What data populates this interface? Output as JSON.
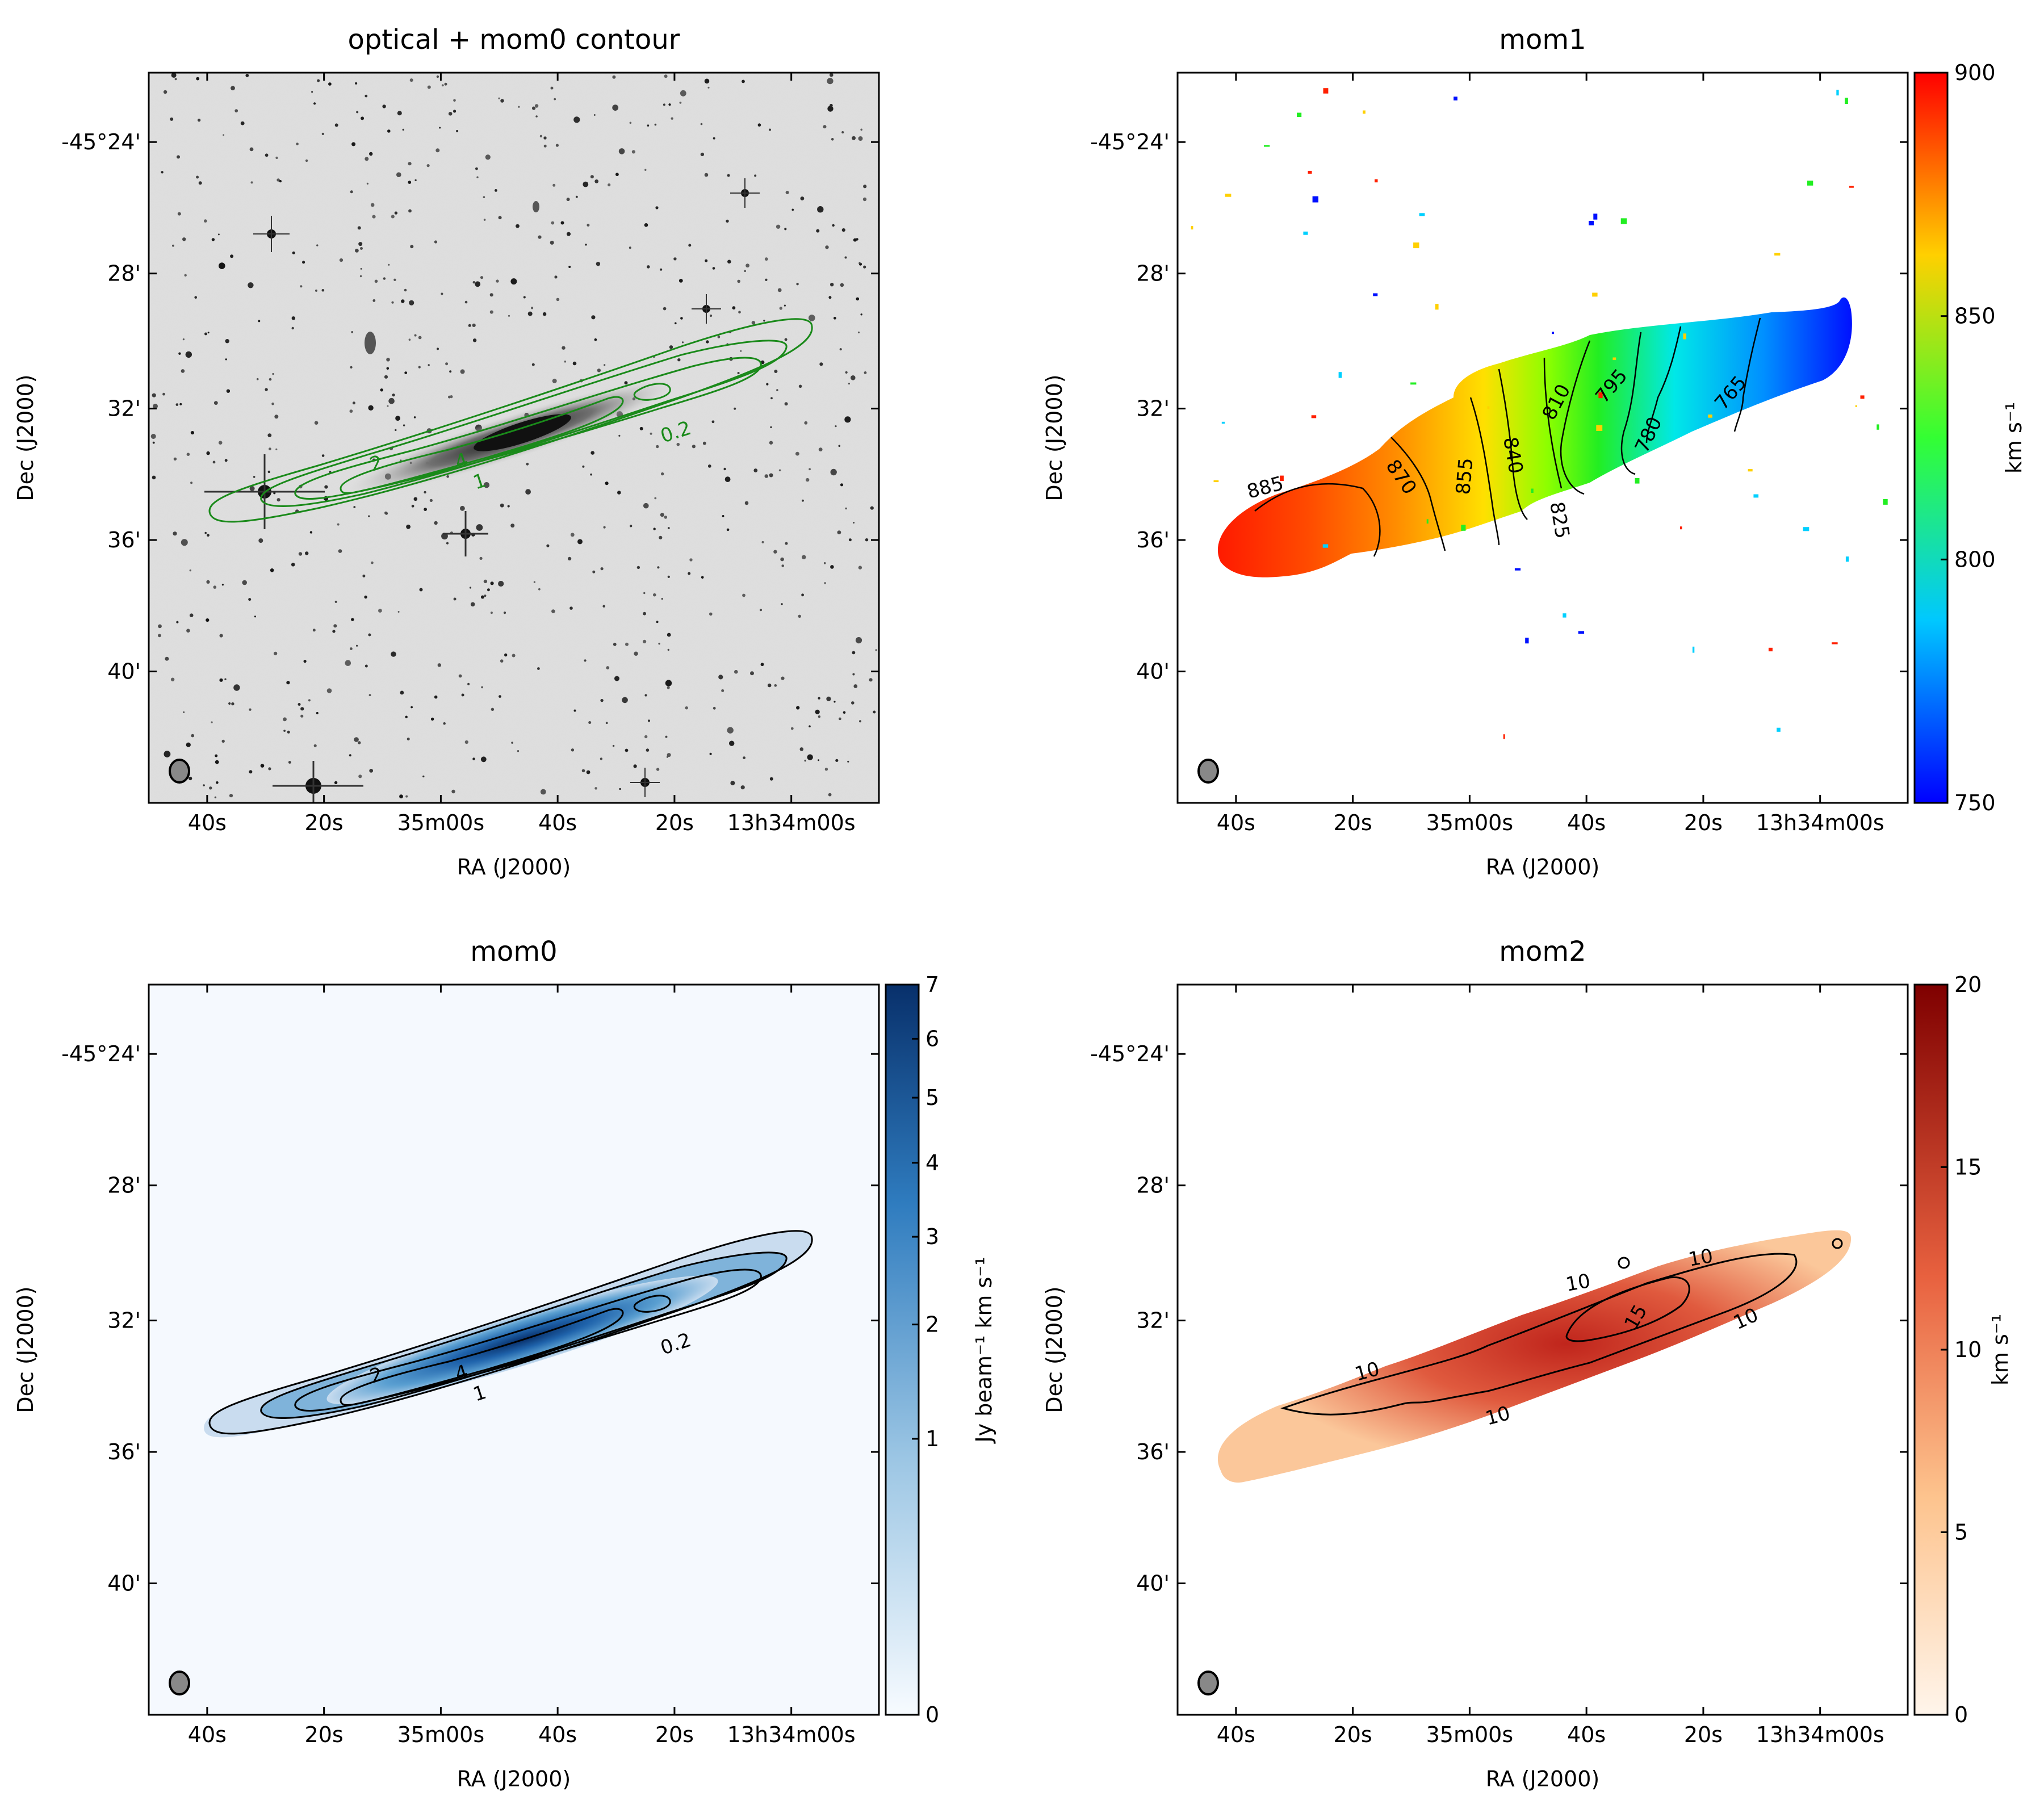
{
  "chart_data": [
    {
      "type": "heatmap",
      "title": "optical + mom0 contour",
      "xlabel": "RA (J2000)",
      "ylabel": "Dec (J2000)",
      "x_ticks": [
        "40s",
        "20s",
        "35m00s",
        "40s",
        "20s",
        "13h34m00s"
      ],
      "y_ticks": [
        "-45°24'",
        "28'",
        "32'",
        "36'",
        "40'"
      ],
      "contour_levels": [
        "0.2",
        "1",
        "2",
        "4"
      ],
      "contour_color": "#1a8a1a",
      "colormap": "gray_r"
    },
    {
      "type": "heatmap",
      "title": "mom1",
      "xlabel": "RA (J2000)",
      "ylabel": "Dec (J2000)",
      "x_ticks": [
        "40s",
        "20s",
        "35m00s",
        "40s",
        "20s",
        "13h34m00s"
      ],
      "y_ticks": [
        "-45°24'",
        "28'",
        "32'",
        "36'",
        "40'"
      ],
      "contour_levels": [
        "885",
        "870",
        "855",
        "840",
        "825",
        "810",
        "795",
        "780",
        "765"
      ],
      "colorbar_label": "km s⁻¹",
      "colorbar_ticks": [
        "900",
        "850",
        "800",
        "750"
      ],
      "colorbar_range": [
        750,
        900
      ],
      "colormap": "jet"
    },
    {
      "type": "heatmap",
      "title": "mom0",
      "xlabel": "RA (J2000)",
      "ylabel": "Dec (J2000)",
      "x_ticks": [
        "40s",
        "20s",
        "35m00s",
        "40s",
        "20s",
        "13h34m00s"
      ],
      "y_ticks": [
        "-45°24'",
        "28'",
        "32'",
        "36'",
        "40'"
      ],
      "contour_levels": [
        "0.2",
        "1",
        "2",
        "4"
      ],
      "colorbar_label": "Jy beam⁻¹ km s⁻¹",
      "colorbar_ticks": [
        "7",
        "6",
        "5",
        "4",
        "3",
        "2",
        "1",
        "0"
      ],
      "colorbar_range": [
        0,
        7
      ],
      "colormap": "Blues"
    },
    {
      "type": "heatmap",
      "title": "mom2",
      "xlabel": "RA (J2000)",
      "ylabel": "Dec (J2000)",
      "x_ticks": [
        "40s",
        "20s",
        "35m00s",
        "40s",
        "20s",
        "13h34m00s"
      ],
      "y_ticks": [
        "-45°24'",
        "28'",
        "32'",
        "36'",
        "40'"
      ],
      "contour_levels": [
        "10",
        "10",
        "10",
        "10",
        "15",
        "10"
      ],
      "colorbar_label": "km s⁻¹",
      "colorbar_ticks": [
        "20",
        "15",
        "10",
        "5",
        "0"
      ],
      "colorbar_range": [
        0,
        20
      ],
      "colormap": "OrRd"
    }
  ]
}
